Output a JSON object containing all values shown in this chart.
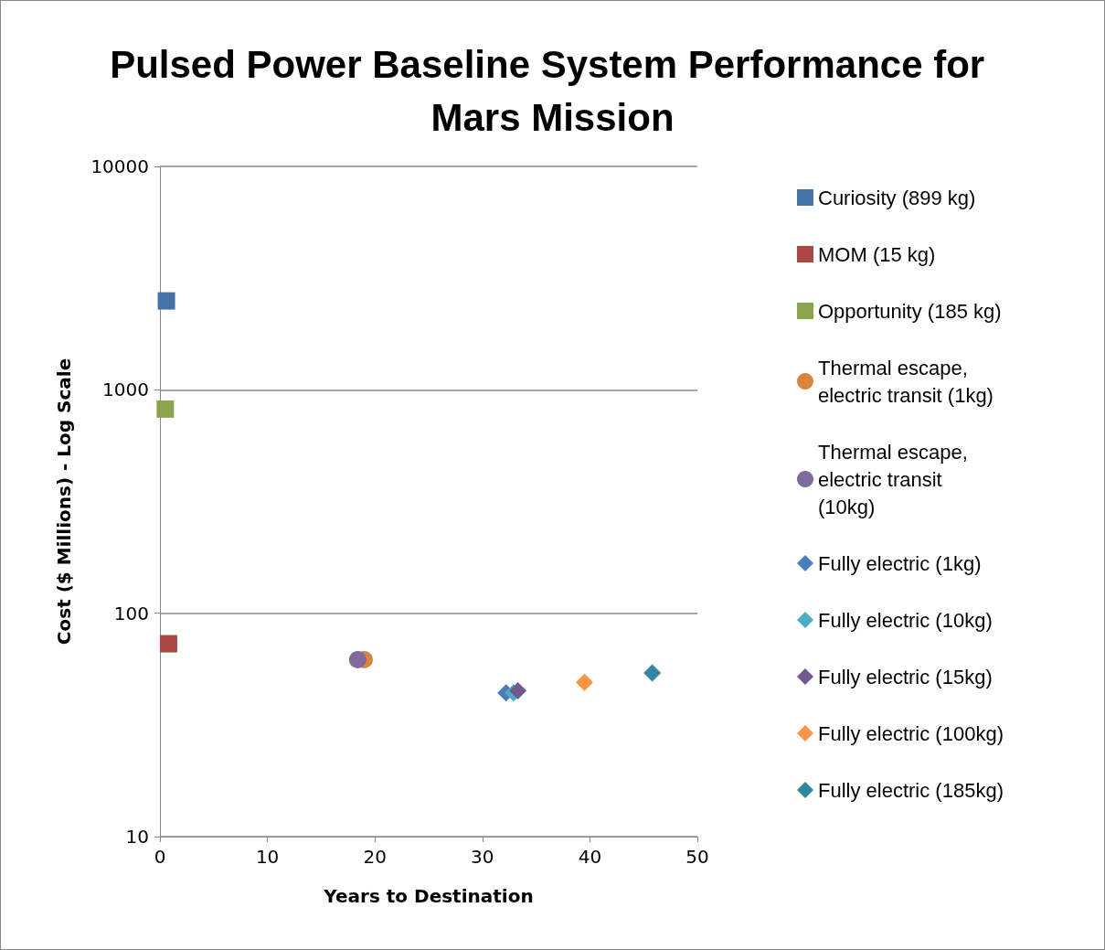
{
  "chart_data": {
    "type": "scatter",
    "title": "Pulsed Power Baseline System Performance for Mars Mission",
    "xlabel": "Years to Destination",
    "ylabel": "Cost ($ Millions) - Log Scale",
    "xlim": [
      0,
      50
    ],
    "xticks": [
      0,
      10,
      20,
      30,
      40,
      50
    ],
    "ylim": [
      10,
      10000
    ],
    "yticks": [
      10,
      100,
      1000,
      10000
    ],
    "log": "y",
    "grid": "y",
    "legend": "right",
    "series": [
      {
        "name": "Curiosity (899 kg)",
        "color": "#4572a7",
        "marker": "square",
        "x": [
          0.6
        ],
        "values": [
          2500
        ]
      },
      {
        "name": "MOM (15 kg)",
        "color": "#aa4643",
        "marker": "square",
        "x": [
          0.8
        ],
        "values": [
          73
        ]
      },
      {
        "name": "Opportunity (185 kg)",
        "color": "#89a54e",
        "marker": "square",
        "x": [
          0.5
        ],
        "values": [
          820
        ]
      },
      {
        "name": "Thermal escape, electric transit (1kg)",
        "color": "#db843d",
        "marker": "circle",
        "x": [
          19.0
        ],
        "values": [
          62
        ]
      },
      {
        "name": "Thermal escape, electric transit (10kg)",
        "color": "#80699b",
        "marker": "circle",
        "x": [
          18.4
        ],
        "values": [
          62
        ]
      },
      {
        "name": "Fully electric (1kg)",
        "color": "#4a7ebb",
        "marker": "diamond",
        "x": [
          32.2
        ],
        "values": [
          44
        ]
      },
      {
        "name": "Fully electric (10kg)",
        "color": "#4bacc6",
        "marker": "diamond",
        "x": [
          32.9
        ],
        "values": [
          44
        ]
      },
      {
        "name": "Fully electric (15kg)",
        "color": "#71588f",
        "marker": "diamond",
        "x": [
          33.3
        ],
        "values": [
          45
        ]
      },
      {
        "name": "Fully electric (100kg)",
        "color": "#f79646",
        "marker": "diamond",
        "x": [
          39.5
        ],
        "values": [
          49
        ]
      },
      {
        "name": "Fully electric (185kg)",
        "color": "#31859c",
        "marker": "diamond",
        "x": [
          45.8
        ],
        "values": [
          54
        ]
      }
    ]
  }
}
